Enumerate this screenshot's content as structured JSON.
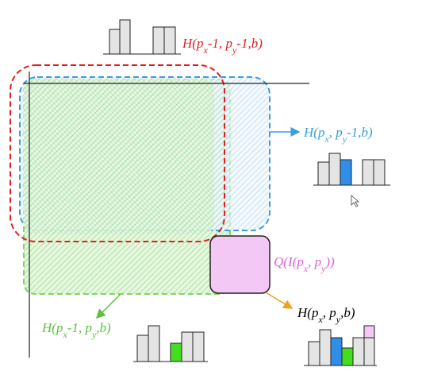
{
  "labels": [
    {
      "parts": [
        "H(p",
        "x",
        "-1, p",
        "y",
        "-1,b)"
      ],
      "color": "#e02020"
    },
    {
      "parts": [
        "H(p",
        "x",
        ", p",
        "y",
        "-1,b)"
      ],
      "color": "#3a9ee0"
    },
    {
      "parts": [
        "Q(I(p",
        "x",
        ", p",
        "y",
        "))"
      ],
      "color": "#e060e0"
    },
    {
      "parts": [
        "H(p",
        "x",
        ", p",
        "y",
        ",b)"
      ],
      "color": "#000000"
    },
    {
      "parts": [
        "H(p",
        "x",
        "-1, p",
        "y",
        ",b)"
      ],
      "color": "#5cc040"
    }
  ]
}
